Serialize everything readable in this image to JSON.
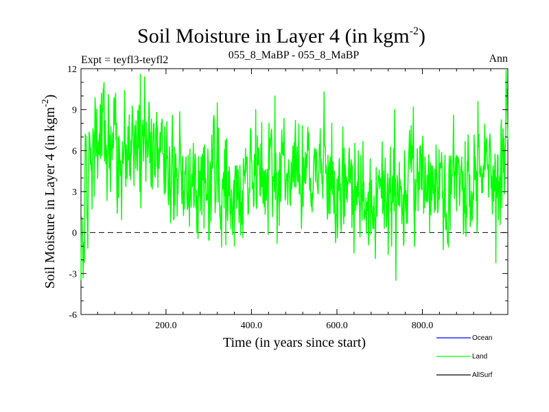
{
  "chart_data": {
    "type": "line",
    "title": "Soil Moisture in Layer 4 (in kgm",
    "title_sup": "-2",
    "title_close": ")",
    "subtitle_left": "Expt = teyfl3-teyfl2",
    "subtitle_center": "055_8_MaBP - 055_8_MaBP",
    "subtitle_right": "Ann",
    "xlabel": "Time (in years since start)",
    "ylabel": "Soil Moisture in Layer 4 (in kgm",
    "ylabel_sup": "-2",
    "ylabel_close": ")",
    "xlim": [
      1,
      1000
    ],
    "ylim": [
      -6,
      12
    ],
    "xticks": [
      200,
      400,
      600,
      800
    ],
    "xtick_labels": [
      "200.0",
      "400.0",
      "600.0",
      "800.0"
    ],
    "yticks": [
      -6,
      -3,
      0,
      3,
      6,
      9,
      12
    ],
    "ytick_labels": [
      "-6",
      "-3",
      "0",
      "3",
      "6",
      "9",
      "12"
    ],
    "reference_line": 0,
    "legend": [
      {
        "name": "Ocean",
        "color": "#0000ff"
      },
      {
        "name": "Land",
        "color": "#00ff00"
      },
      {
        "name": "AllSurf",
        "color": "#000000"
      }
    ],
    "series": [
      {
        "name": "Land",
        "color": "#00ff00",
        "anchors": [
          [
            1,
            0.8
          ],
          [
            5,
            -0.6
          ],
          [
            10,
            2.2
          ],
          [
            20,
            3.5
          ],
          [
            30,
            5.5
          ],
          [
            40,
            7.0
          ],
          [
            55,
            6.5
          ],
          [
            70,
            5.5
          ],
          [
            90,
            5.5
          ],
          [
            110,
            6.0
          ],
          [
            130,
            7.0
          ],
          [
            150,
            7.6
          ],
          [
            170,
            6.5
          ],
          [
            190,
            5.5
          ],
          [
            210,
            4.8
          ],
          [
            230,
            4.5
          ],
          [
            250,
            4.2
          ],
          [
            270,
            3.6
          ],
          [
            290,
            3.4
          ],
          [
            310,
            4.0
          ],
          [
            330,
            3.8
          ],
          [
            350,
            3.0
          ],
          [
            370,
            3.2
          ],
          [
            390,
            4.2
          ],
          [
            410,
            4.6
          ],
          [
            430,
            4.5
          ],
          [
            450,
            4.8
          ],
          [
            470,
            5.0
          ],
          [
            490,
            4.6
          ],
          [
            510,
            4.1
          ],
          [
            530,
            4.2
          ],
          [
            550,
            4.6
          ],
          [
            570,
            4.4
          ],
          [
            590,
            3.2
          ],
          [
            610,
            3.0
          ],
          [
            630,
            3.6
          ],
          [
            650,
            3.0
          ],
          [
            670,
            2.2
          ],
          [
            690,
            1.8
          ],
          [
            710,
            2.4
          ],
          [
            730,
            3.0
          ],
          [
            750,
            3.2
          ],
          [
            770,
            3.6
          ],
          [
            790,
            3.8
          ],
          [
            810,
            4.2
          ],
          [
            830,
            3.5
          ],
          [
            850,
            3.8
          ],
          [
            870,
            4.0
          ],
          [
            890,
            3.6
          ],
          [
            910,
            3.8
          ],
          [
            930,
            4.2
          ],
          [
            950,
            4.0
          ],
          [
            970,
            4.2
          ],
          [
            985,
            5.0
          ],
          [
            993,
            6.5
          ],
          [
            1000,
            7.0
          ]
        ],
        "noise_amplitude": 2.4,
        "seed": 1234,
        "peaks": [
          [
            55,
            11.0
          ],
          [
            140,
            11.6
          ],
          [
            150,
            11.4
          ],
          [
            320,
            9.5
          ],
          [
            410,
            9.0
          ],
          [
            455,
            10.0
          ],
          [
            570,
            10.3
          ],
          [
            735,
            9.0
          ],
          [
            930,
            9.6
          ],
          [
            996,
            11.9
          ],
          [
            340,
            -0.9
          ],
          [
            300,
            -0.5
          ],
          [
            360,
            -1.0
          ],
          [
            460,
            -0.8
          ],
          [
            640,
            -1.5
          ],
          [
            690,
            -1.9
          ],
          [
            720,
            -1.6
          ],
          [
            738,
            -3.5
          ],
          [
            860,
            -0.5
          ],
          [
            972,
            -2.2
          ]
        ]
      },
      {
        "name": "Ocean",
        "color": "#0000ff",
        "values": []
      },
      {
        "name": "AllSurf",
        "color": "#000000",
        "values": []
      }
    ]
  }
}
